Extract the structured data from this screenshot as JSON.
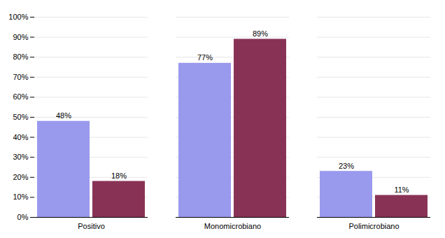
{
  "chart_data": {
    "type": "bar",
    "categories": [
      "Positivo",
      "Monomicrobiano",
      "Polimicrobiano"
    ],
    "series": [
      {
        "color": "#9999EE",
        "values": [
          48,
          77,
          23
        ],
        "value_labels": [
          "48%",
          "77%",
          "23%"
        ]
      },
      {
        "color": "#883355",
        "values": [
          18,
          89,
          11
        ],
        "value_labels": [
          "18%",
          "89%",
          "11%"
        ]
      }
    ],
    "ylim": [
      0,
      100
    ],
    "yticks": [
      {
        "value": 0,
        "label": "0%"
      },
      {
        "value": 10,
        "label": "10%"
      },
      {
        "value": 20,
        "label": "20%"
      },
      {
        "value": 30,
        "label": "30%"
      },
      {
        "value": 40,
        "label": "40%"
      },
      {
        "value": 50,
        "label": "50%"
      },
      {
        "value": 60,
        "label": "60%"
      },
      {
        "value": 70,
        "label": "70%"
      },
      {
        "value": 80,
        "label": "80%"
      },
      {
        "value": 90,
        "label": "90%"
      },
      {
        "value": 100,
        "label": "100%"
      }
    ],
    "grid": true,
    "data_labels": true
  }
}
